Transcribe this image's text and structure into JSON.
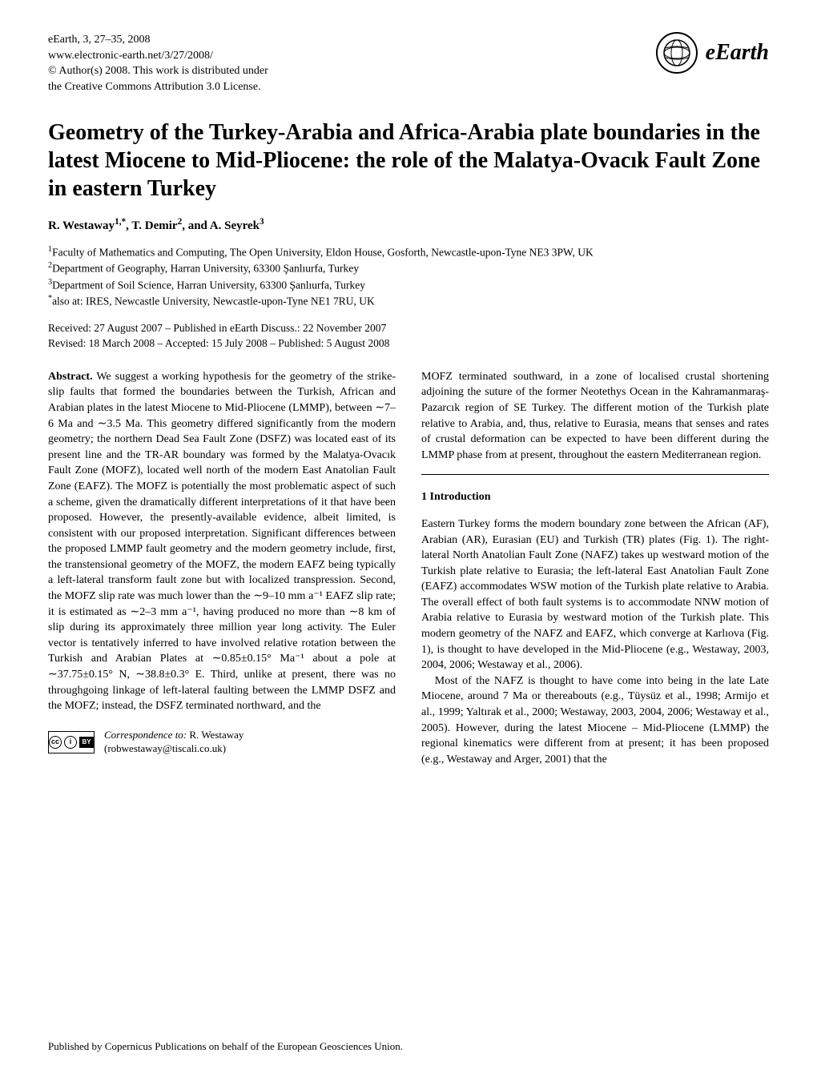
{
  "header": {
    "journal_line": "eEarth, 3, 27–35, 2008",
    "url": "www.electronic-earth.net/3/27/2008/",
    "copyright": "© Author(s) 2008. This work is distributed under",
    "license": "the Creative Commons Attribution 3.0 License.",
    "logo_text": "eEarth"
  },
  "title": "Geometry of the Turkey-Arabia and Africa-Arabia plate boundaries in the latest Miocene to Mid-Pliocene: the role of the Malatya-Ovacık Fault Zone in eastern Turkey",
  "authors_html": "R. Westaway<sup>1,*</sup>, T. Demir<sup>2</sup>, and A. Seyrek<sup>3</sup>",
  "affiliations": [
    "<sup>1</sup>Faculty of Mathematics and Computing, The Open University, Eldon House, Gosforth, Newcastle-upon-Tyne NE3 3PW, UK",
    "<sup>2</sup>Department of Geography, Harran University, 63300 Şanlıurfa, Turkey",
    "<sup>3</sup>Department of Soil Science, Harran University, 63300 Şanlıurfa, Turkey",
    "<sup>*</sup>also at: IRES, Newcastle University, Newcastle-upon-Tyne NE1 7RU, UK"
  ],
  "dates": {
    "received": "Received: 27 August 2007 – Published in eEarth Discuss.: 22 November 2007",
    "revised": "Revised: 18 March 2008 – Accepted: 15 July 2008 – Published: 5 August 2008"
  },
  "abstract_label": "Abstract.",
  "abstract_text": " We suggest a working hypothesis for the geometry of the strike-slip faults that formed the boundaries between the Turkish, African and Arabian plates in the latest Miocene to Mid-Pliocene (LMMP), between ∼7–6 Ma and ∼3.5 Ma. This geometry differed significantly from the modern geometry; the northern Dead Sea Fault Zone (DSFZ) was located east of its present line and the TR-AR boundary was formed by the Malatya-Ovacık Fault Zone (MOFZ), located well north of the modern East Anatolian Fault Zone (EAFZ). The MOFZ is potentially the most problematic aspect of such a scheme, given the dramatically different interpretations of it that have been proposed. However, the presently-available evidence, albeit limited, is consistent with our proposed interpretation. Significant differences between the proposed LMMP fault geometry and the modern geometry include, first, the transtensional geometry of the MOFZ, the modern EAFZ being typically a left-lateral transform fault zone but with localized transpression. Second, the MOFZ slip rate was much lower than the ∼9–10 mm a⁻¹ EAFZ slip rate; it is estimated as ∼2–3 mm a⁻¹, having produced no more than ∼8 km of slip during its approximately three million year long activity. The Euler vector is tentatively inferred to have involved relative rotation between the Turkish and Arabian Plates at ∼0.85±0.15° Ma⁻¹ about a pole at ∼37.75±0.15° N, ∼38.8±0.3° E. Third, unlike at present, there was no throughgoing linkage of left-lateral faulting between the LMMP DSFZ and the MOFZ; instead, the DSFZ terminated northward, and the",
  "col2_top": "MOFZ terminated southward, in a zone of localised crustal shortening adjoining the suture of the former Neotethys Ocean in the Kahramanmaraş-Pazarcık region of SE Turkey. The different motion of the Turkish plate relative to Arabia, and, thus, relative to Eurasia, means that senses and rates of crustal deformation can be expected to have been different during the LMMP phase from at present, throughout the eastern Mediterranean region.",
  "section1": {
    "heading": "1   Introduction",
    "p1": "Eastern Turkey forms the modern boundary zone between the African (AF), Arabian (AR), Eurasian (EU) and Turkish (TR) plates (Fig. 1). The right-lateral North Anatolian Fault Zone (NAFZ) takes up westward motion of the Turkish plate relative to Eurasia; the left-lateral East Anatolian Fault Zone (EAFZ) accommodates WSW motion of the Turkish plate relative to Arabia. The overall effect of both fault systems is to accommodate NNW motion of Arabia relative to Eurasia by westward motion of the Turkish plate. This modern geometry of the NAFZ and EAFZ, which converge at Karlıova (Fig. 1), is thought to have developed in the Mid-Pliocene (e.g., Westaway, 2003, 2004, 2006; Westaway et al., 2006).",
    "p2": "Most of the NAFZ is thought to have come into being in the late Late Miocene, around 7 Ma or thereabouts (e.g., Tüysüz et al., 1998; Armijo et al., 1999; Yaltırak et al., 2000; Westaway, 2003, 2004, 2006; Westaway et al., 2005). However, during the latest Miocene – Mid-Pliocene (LMMP) the regional kinematics were different from at present; it has been proposed (e.g., Westaway and Arger, 2001) that the"
  },
  "correspondence": {
    "label": "Correspondence to:",
    "name": "R. Westaway",
    "email": "(robwestaway@tiscali.co.uk)"
  },
  "footer": "Published by Copernicus Publications on behalf of the European Geosciences Union."
}
